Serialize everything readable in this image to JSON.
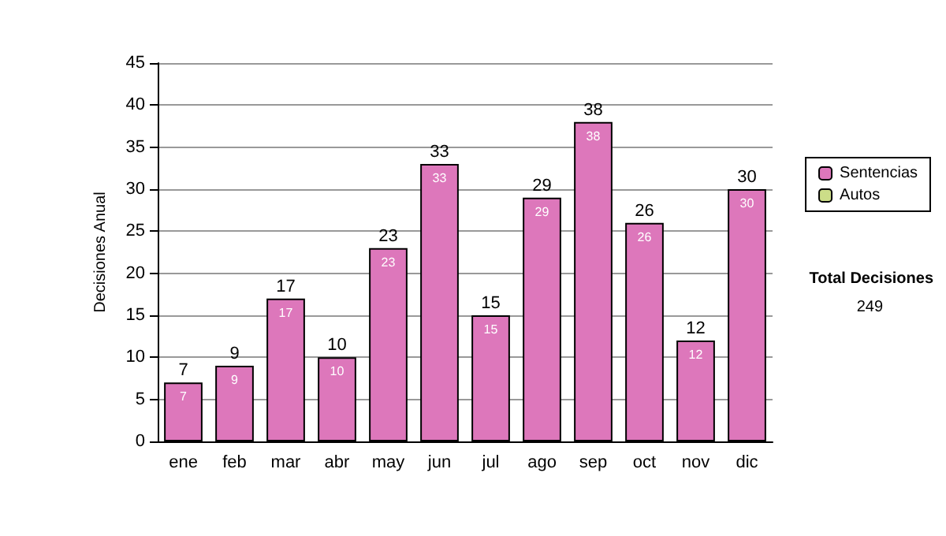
{
  "chart_data": {
    "type": "bar",
    "ylabel": "Decisiones Anual",
    "categories": [
      "ene",
      "feb",
      "mar",
      "abr",
      "may",
      "jun",
      "jul",
      "ago",
      "sep",
      "oct",
      "nov",
      "dic"
    ],
    "series": [
      {
        "name": "Sentencias",
        "color": "#dd77bb",
        "values": [
          7,
          9,
          17,
          10,
          23,
          33,
          15,
          29,
          38,
          26,
          12,
          30
        ],
        "value_labels": [
          "7",
          "9",
          "17",
          "10",
          "23",
          "33",
          "15",
          "29",
          "38",
          "26",
          "12",
          "30"
        ]
      },
      {
        "name": "Autos",
        "color": "#ccdd88",
        "values": [
          0,
          0,
          0,
          0,
          0,
          0,
          0,
          0,
          0,
          0,
          0,
          0
        ]
      }
    ],
    "stacked": true,
    "totals": [
      "7",
      "9",
      "17",
      "10",
      "23",
      "33",
      "15",
      "29",
      "38",
      "26",
      "12",
      "30"
    ],
    "ylim": [
      0,
      45
    ],
    "yticks": [
      0,
      5,
      10,
      15,
      20,
      25,
      30,
      35,
      40,
      45
    ],
    "grid": "y",
    "legend": "right",
    "annotations": [
      "Total Decisiones",
      "249"
    ]
  }
}
